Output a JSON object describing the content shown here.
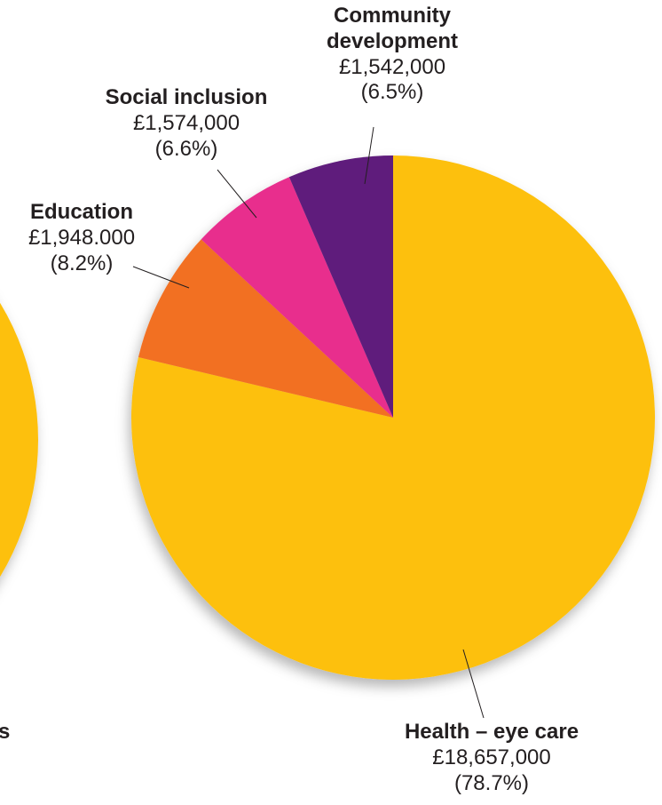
{
  "chart_data": {
    "type": "pie",
    "title": "",
    "slices": [
      {
        "name": "Health – eye care",
        "amount": "£18,657,000",
        "percent_label": "(78.7%)",
        "value": 78.7,
        "color": "#fdc010"
      },
      {
        "name": "Education",
        "amount": "£1,948.000",
        "percent_label": "(8.2%)",
        "value": 8.2,
        "color": "#f26f21"
      },
      {
        "name": "Social inclusion",
        "amount": "£1,574,000",
        "percent_label": "(6.6%)",
        "value": 6.6,
        "color": "#e82f8d"
      },
      {
        "name": "Community development",
        "amount": "£1,542,000",
        "percent_label": "(6.5%)",
        "value": 6.5,
        "color": "#5f1f7b"
      }
    ],
    "partial_pie": {
      "color": "#fdc010",
      "label_fragment": "s"
    }
  }
}
